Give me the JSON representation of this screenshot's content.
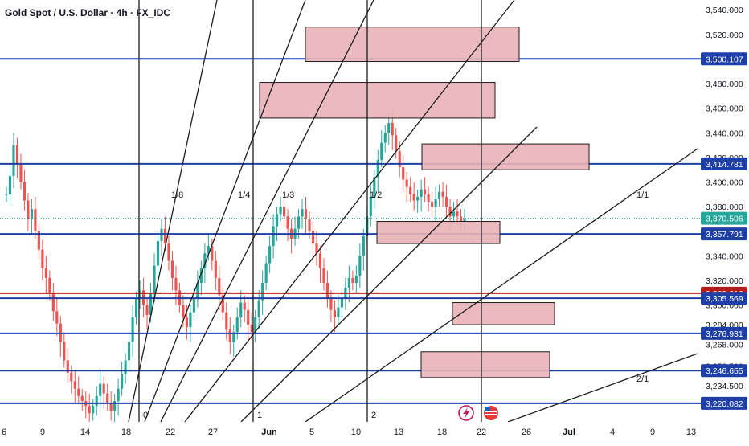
{
  "header": {
    "title": "Gold Spot / U.S. Dollar · 4h · FX_IDC"
  },
  "chart_data": {
    "type": "candlestick",
    "symbol": "Gold Spot / U.S. Dollar",
    "interval": "4h",
    "source": "FX_IDC",
    "ylim": [
      3205,
      3548
    ],
    "y_ticks": [
      3540,
      3520,
      3500,
      3480,
      3460,
      3440,
      3420,
      3400,
      3380,
      3360,
      3340,
      3320,
      3300,
      3284,
      3268,
      3250.5,
      3234.5
    ],
    "y_tick_labels": [
      "3,540.000",
      "3,520.000",
      "3,500.000",
      "3,480.000",
      "3,460.000",
      "3,440.000",
      "3,420.000",
      "3,400.000",
      "3,380.000",
      "3,360.000",
      "3,340.000",
      "3,320.000",
      "3,300.000",
      "3,284.000",
      "3,268.000",
      "3,250.500",
      "3,234.500"
    ],
    "x_ticks": [
      "6",
      "9",
      "14",
      "18",
      "22",
      "27",
      "Jun",
      "5",
      "10",
      "13",
      "18",
      "22",
      "26",
      "Jul",
      "4",
      "9",
      "13"
    ],
    "horizontal_levels": [
      {
        "value": 3500.107,
        "label": "3,500.107",
        "color": "#1f3fa8"
      },
      {
        "value": 3414.781,
        "label": "3,414.781",
        "color": "#1f3fa8"
      },
      {
        "value": 3357.791,
        "label": "3,357.791",
        "color": "#1f3fa8"
      },
      {
        "value": 3309.616,
        "label": "3,309.616",
        "color": "#b71c1c"
      },
      {
        "value": 3305.569,
        "label": "3,305.569",
        "color": "#1f3fa8"
      },
      {
        "value": 3276.931,
        "label": "3,276.931",
        "color": "#1f3fa8"
      },
      {
        "value": 3246.655,
        "label": "3,246.655",
        "color": "#1f3fa8"
      },
      {
        "value": 3220.082,
        "label": "3,220.082",
        "color": "#1f3fa8"
      }
    ],
    "last_price": {
      "value": 3370.506,
      "label": "3,370.506",
      "color": "#26a69a"
    },
    "fan_labels": [
      "1/8",
      "1/4",
      "1/3",
      "1/2",
      "1/1",
      "2/1"
    ],
    "cycle_labels": [
      "0",
      "1",
      "2"
    ],
    "zones": [
      {
        "from": 3498,
        "to": 3526
      },
      {
        "from": 3452,
        "to": 3481
      },
      {
        "from": 3410,
        "to": 3431
      },
      {
        "from": 3350,
        "to": 3368
      },
      {
        "from": 3284,
        "to": 3302
      },
      {
        "from": 3241,
        "to": 3262
      }
    ],
    "series": [
      {
        "values": [
          3390,
          3405,
          3430,
          3415,
          3400,
          3385,
          3370,
          3378,
          3360,
          3345,
          3330,
          3322,
          3310,
          3295,
          3285,
          3270,
          3255,
          3245,
          3238,
          3232,
          3226,
          3222,
          3218,
          3212,
          3218,
          3226,
          3236,
          3228,
          3220,
          3214,
          3222,
          3232,
          3244,
          3255,
          3270,
          3290,
          3305,
          3312,
          3300,
          3292,
          3310,
          3332,
          3352,
          3362,
          3350,
          3336,
          3322,
          3312,
          3300,
          3290,
          3282,
          3294,
          3306,
          3318,
          3330,
          3342,
          3348,
          3336,
          3322,
          3308,
          3294,
          3280,
          3270,
          3278,
          3290,
          3302,
          3296,
          3284,
          3278,
          3290,
          3304,
          3318,
          3334,
          3348,
          3364,
          3374,
          3380,
          3372,
          3362,
          3354,
          3362,
          3372,
          3378,
          3370,
          3360,
          3350,
          3342,
          3330,
          3318,
          3306,
          3296,
          3290,
          3298,
          3306,
          3314,
          3322,
          3318,
          3324,
          3340,
          3356,
          3372,
          3388,
          3404,
          3418,
          3432,
          3440,
          3448,
          3438,
          3425,
          3412,
          3402,
          3396,
          3390,
          3385,
          3388,
          3394,
          3390,
          3384,
          3380,
          3386,
          3392,
          3388,
          3380,
          3372,
          3376,
          3372,
          3368,
          3370
        ]
      }
    ],
    "time_labels": [
      {
        "text": "Jun"
      }
    ]
  },
  "icons": {
    "flash": "lightning-icon",
    "flag": "us-flag-icon"
  }
}
